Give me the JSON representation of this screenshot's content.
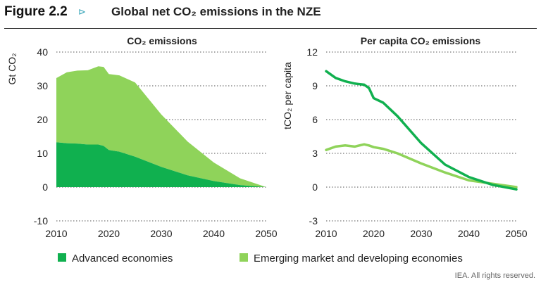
{
  "header": {
    "figure_label": "Figure 2.2",
    "arrow": "⊳",
    "title": "Global net CO₂ emissions in the NZE"
  },
  "credit": "IEA. All rights reserved.",
  "colors": {
    "advanced": "#10b04f",
    "emerging": "#8fd35a"
  },
  "chart_data": [
    {
      "type": "area",
      "title": "CO₂ emissions",
      "ylabel": "Gt CO₂",
      "xlabel": "",
      "xlim": [
        2010,
        2050
      ],
      "ylim": [
        -10,
        40
      ],
      "xticks": [
        2010,
        2020,
        2030,
        2040,
        2050
      ],
      "yticks": [
        -10,
        0,
        10,
        20,
        30,
        40
      ],
      "grid": true,
      "stacked": true,
      "x": [
        2010,
        2012,
        2014,
        2016,
        2018,
        2019,
        2020,
        2022,
        2025,
        2030,
        2035,
        2040,
        2045,
        2050
      ],
      "series": [
        {
          "name": "Advanced economies",
          "values": [
            13.3,
            13.0,
            12.9,
            12.6,
            12.6,
            12.2,
            11.0,
            10.5,
            9.0,
            6.0,
            3.5,
            1.8,
            0.6,
            0.0
          ]
        },
        {
          "name": "Emerging market and developing economies",
          "values": [
            19.0,
            21.0,
            21.6,
            22.0,
            23.2,
            23.4,
            22.5,
            22.6,
            22.0,
            15.5,
            10.0,
            5.5,
            2.0,
            0.0
          ]
        }
      ]
    },
    {
      "type": "line",
      "title": "Per capita CO₂ emissions",
      "ylabel": "tCO₂ per capita",
      "xlabel": "",
      "xlim": [
        2010,
        2050
      ],
      "ylim": [
        -3,
        12
      ],
      "xticks": [
        2010,
        2020,
        2030,
        2040,
        2050
      ],
      "yticks": [
        -3,
        0,
        3,
        6,
        9,
        12
      ],
      "grid": true,
      "x": [
        2010,
        2012,
        2014,
        2016,
        2018,
        2019,
        2020,
        2022,
        2025,
        2030,
        2035,
        2040,
        2045,
        2050
      ],
      "series": [
        {
          "name": "Advanced economies",
          "values": [
            10.3,
            9.7,
            9.4,
            9.2,
            9.1,
            8.8,
            7.9,
            7.5,
            6.3,
            3.9,
            2.0,
            0.9,
            0.2,
            -0.2
          ]
        },
        {
          "name": "Emerging market and developing economies",
          "values": [
            3.3,
            3.6,
            3.7,
            3.6,
            3.8,
            3.7,
            3.55,
            3.4,
            3.0,
            2.1,
            1.3,
            0.6,
            0.3,
            0.0
          ]
        }
      ]
    }
  ],
  "legend": {
    "position": "bottom",
    "items": [
      {
        "label": "Advanced economies",
        "color": "#10b04f"
      },
      {
        "label": "Emerging market and developing economies",
        "color": "#8fd35a"
      }
    ]
  }
}
